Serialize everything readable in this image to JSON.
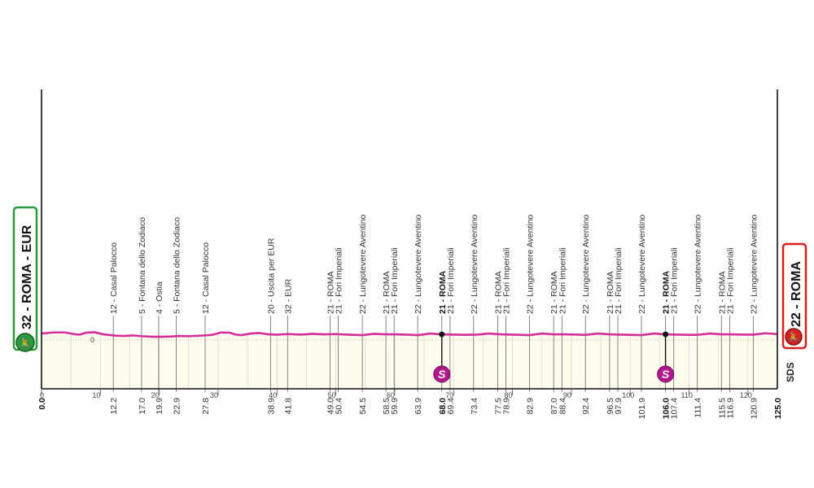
{
  "chart_data": {
    "type": "area",
    "xlabel": "",
    "ylabel": "",
    "xlim": [
      0,
      125
    ],
    "x_ticks": [
      0,
      10,
      20,
      30,
      40,
      50,
      60,
      70,
      80,
      90,
      100,
      110,
      120
    ],
    "y_reference_label": "0",
    "grid": false,
    "colors": {
      "profile_line": "#d62e9b",
      "fill": "#fdfdee",
      "start": "#2b9a3a",
      "finish": "#d9201f",
      "sprint": "#b3178c"
    },
    "start": {
      "km": "0.0",
      "label": "32 - ROMA - EUR",
      "icon": "cyclist-start-icon"
    },
    "finish": {
      "km": "125.0",
      "label": "22 - ROMA",
      "icon": "cyclist-finish-icon"
    },
    "logo": "SDS",
    "profile": [
      [
        0,
        24
      ],
      [
        2,
        28
      ],
      [
        4,
        28
      ],
      [
        5.5,
        22
      ],
      [
        6.5,
        20
      ],
      [
        7.5,
        27
      ],
      [
        9,
        29
      ],
      [
        10.5,
        21
      ],
      [
        12.5,
        16
      ],
      [
        14,
        15
      ],
      [
        15.5,
        17
      ],
      [
        17,
        14
      ],
      [
        19,
        12
      ],
      [
        20,
        12
      ],
      [
        22,
        13
      ],
      [
        23.5,
        15
      ],
      [
        25,
        14
      ],
      [
        27,
        16
      ],
      [
        29,
        19
      ],
      [
        30.5,
        28
      ],
      [
        32,
        27
      ],
      [
        33,
        20
      ],
      [
        34,
        18
      ],
      [
        35.5,
        24
      ],
      [
        37,
        26
      ],
      [
        38.5,
        21
      ],
      [
        40,
        20
      ],
      [
        42,
        22
      ],
      [
        44,
        20
      ],
      [
        46,
        23
      ],
      [
        48,
        21
      ],
      [
        50,
        22
      ],
      [
        52,
        20
      ],
      [
        54.5,
        18
      ],
      [
        56.5,
        23
      ],
      [
        58.5,
        21
      ],
      [
        60,
        21
      ],
      [
        62,
        20
      ],
      [
        64,
        18
      ],
      [
        66,
        24
      ],
      [
        68,
        21
      ],
      [
        70,
        20
      ],
      [
        72,
        19
      ],
      [
        74,
        20
      ],
      [
        76,
        24
      ],
      [
        78,
        21
      ],
      [
        80,
        20
      ],
      [
        82.9,
        18
      ],
      [
        85,
        24
      ],
      [
        87,
        21
      ],
      [
        89,
        21
      ],
      [
        91,
        20
      ],
      [
        92.4,
        19
      ],
      [
        94.5,
        24
      ],
      [
        96.5,
        21
      ],
      [
        98,
        20
      ],
      [
        100,
        19
      ],
      [
        101.9,
        18
      ],
      [
        104,
        24
      ],
      [
        106,
        21
      ],
      [
        108,
        20
      ],
      [
        110,
        19
      ],
      [
        111.4,
        19
      ],
      [
        113.5,
        24
      ],
      [
        115.5,
        21
      ],
      [
        117,
        21
      ],
      [
        119,
        20
      ],
      [
        120.9,
        20
      ],
      [
        123,
        25
      ],
      [
        125,
        22
      ]
    ],
    "waypoints": [
      {
        "km": "12.2",
        "label": "12 - Casal Palocco"
      },
      {
        "km": "17.0",
        "label": "5 - Fontana dello Zodiaco"
      },
      {
        "km": "19.9",
        "label": "4 - Ostia"
      },
      {
        "km": "22.9",
        "label": "5 - Fontana dello Zodiaco"
      },
      {
        "km": "27.8",
        "label": "12 - Casal Palocco"
      },
      {
        "km": "38.9",
        "label": "20 - Uscita per EUR"
      },
      {
        "km": "41.8",
        "label": "32 - EUR"
      },
      {
        "km": "49.0",
        "label": "21 - ROMA"
      },
      {
        "km": "50.4",
        "label": "21 - Fori Imperiali"
      },
      {
        "km": "54.5",
        "label": "22 - Lungotevere Aventino"
      },
      {
        "km": "58.5",
        "label": "21 - ROMA"
      },
      {
        "km": "59.9",
        "label": "21 - Fori Imperiali"
      },
      {
        "km": "63.9",
        "label": "22 - Lungotevere Aventino"
      },
      {
        "km": "68.0",
        "label": "21 - ROMA",
        "sprint": true
      },
      {
        "km": "69.4",
        "label": "21 - Fori Imperiali"
      },
      {
        "km": "73.4",
        "label": "22 - Lungotevere Aventino"
      },
      {
        "km": "77.5",
        "label": "21 - ROMA"
      },
      {
        "km": "78.9",
        "label": "21 - Fori Imperiali"
      },
      {
        "km": "82.9",
        "label": "22 - Lungotevere Aventino"
      },
      {
        "km": "87.0",
        "label": "21 - ROMA"
      },
      {
        "km": "88.4",
        "label": "21 - Fori Imperiali"
      },
      {
        "km": "92.4",
        "label": "22 - Lungotevere Aventino"
      },
      {
        "km": "96.5",
        "label": "21 - ROMA"
      },
      {
        "km": "97.9",
        "label": "21 - Fori Imperiali"
      },
      {
        "km": "101.9",
        "label": "22 - Lungotevere Aventino"
      },
      {
        "km": "106.0",
        "label": "21 - ROMA",
        "sprint": true
      },
      {
        "km": "107.4",
        "label": "21 - Fori Imperiali"
      },
      {
        "km": "111.4",
        "label": "22 - Lungotevere Aventino"
      },
      {
        "km": "115.5",
        "label": "21 - ROMA"
      },
      {
        "km": "116.9",
        "label": "21 - Fori Imperiali"
      },
      {
        "km": "120.9",
        "label": "22 - Lungotevere Aventino"
      }
    ],
    "sprint_label": "S"
  }
}
